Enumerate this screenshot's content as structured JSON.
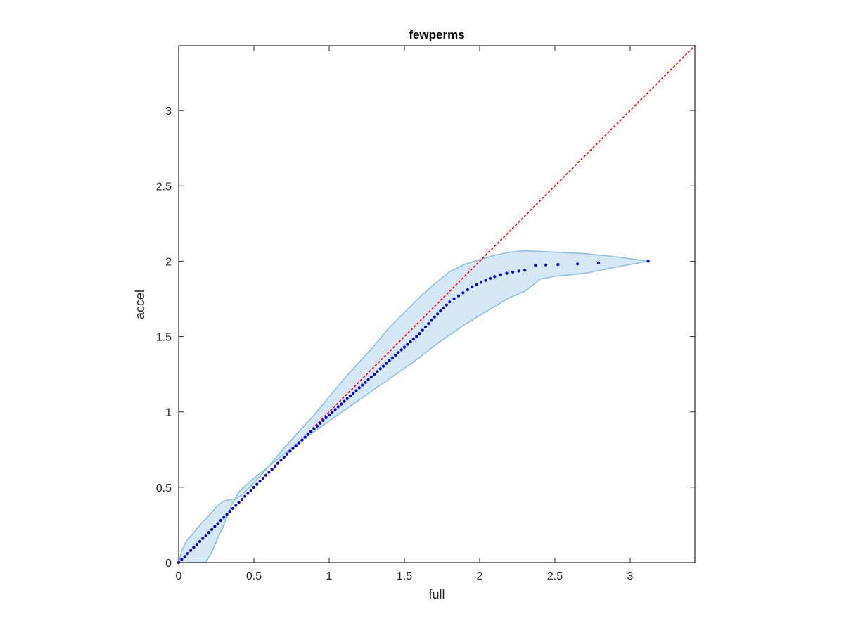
{
  "chart_data": {
    "type": "scatter",
    "title": "fewperms",
    "xlabel": "full",
    "ylabel": "accel",
    "xlim": [
      0,
      3.43
    ],
    "ylim": [
      0,
      3.43
    ],
    "xticks": [
      0,
      0.5,
      1,
      1.5,
      2,
      2.5,
      3
    ],
    "xtick_labels": [
      "0",
      "0.5",
      "1",
      "1.5",
      "2",
      "2.5",
      "3"
    ],
    "yticks": [
      0,
      0.5,
      1,
      1.5,
      2,
      2.5,
      3
    ],
    "ytick_labels": [
      "0",
      "0.5",
      "1",
      "1.5",
      "2",
      "2.5",
      "3"
    ],
    "grid": false,
    "colors": {
      "points": "#0000ee",
      "reference_line": "#ff0000",
      "band_fill": "#d6e8f5",
      "band_edge": "#8cc0e0",
      "axes": "#262626"
    },
    "reference_line": {
      "style": "dotted",
      "from": [
        0,
        0
      ],
      "to": [
        3.43,
        3.43
      ]
    },
    "band": {
      "upper": [
        [
          0,
          0
        ],
        [
          0.02,
          0.08
        ],
        [
          0.05,
          0.14
        ],
        [
          0.1,
          0.2
        ],
        [
          0.15,
          0.26
        ],
        [
          0.2,
          0.31
        ],
        [
          0.25,
          0.37
        ],
        [
          0.3,
          0.41
        ],
        [
          0.35,
          0.42
        ],
        [
          0.38,
          0.42
        ],
        [
          0.42,
          0.45
        ],
        [
          0.5,
          0.53
        ],
        [
          0.6,
          0.64
        ],
        [
          0.7,
          0.76
        ],
        [
          0.8,
          0.87
        ],
        [
          0.9,
          0.98
        ],
        [
          1.0,
          1.1
        ],
        [
          1.1,
          1.22
        ],
        [
          1.2,
          1.33
        ],
        [
          1.3,
          1.44
        ],
        [
          1.4,
          1.56
        ],
        [
          1.5,
          1.66
        ],
        [
          1.6,
          1.76
        ],
        [
          1.7,
          1.85
        ],
        [
          1.8,
          1.93
        ],
        [
          1.9,
          1.98
        ],
        [
          2.0,
          2.01
        ],
        [
          2.1,
          2.04
        ],
        [
          2.2,
          2.06
        ],
        [
          2.3,
          2.07
        ],
        [
          2.5,
          2.06
        ],
        [
          2.7,
          2.05
        ],
        [
          2.9,
          2.03
        ],
        [
          3.12,
          2.0
        ]
      ],
      "lower": [
        [
          3.12,
          2.0
        ],
        [
          2.9,
          1.96
        ],
        [
          2.7,
          1.92
        ],
        [
          2.5,
          1.9
        ],
        [
          2.4,
          1.88
        ],
        [
          2.35,
          1.84
        ],
        [
          2.3,
          1.8
        ],
        [
          2.2,
          1.76
        ],
        [
          2.1,
          1.7
        ],
        [
          2.0,
          1.64
        ],
        [
          1.9,
          1.58
        ],
        [
          1.8,
          1.51
        ],
        [
          1.7,
          1.44
        ],
        [
          1.6,
          1.36
        ],
        [
          1.5,
          1.29
        ],
        [
          1.4,
          1.22
        ],
        [
          1.3,
          1.15
        ],
        [
          1.2,
          1.08
        ],
        [
          1.1,
          1.01
        ],
        [
          1.0,
          0.94
        ],
        [
          0.9,
          0.87
        ],
        [
          0.8,
          0.8
        ],
        [
          0.7,
          0.72
        ],
        [
          0.6,
          0.64
        ],
        [
          0.5,
          0.56
        ],
        [
          0.4,
          0.47
        ],
        [
          0.35,
          0.38
        ],
        [
          0.3,
          0.25
        ],
        [
          0.25,
          0.14
        ],
        [
          0.22,
          0.07
        ],
        [
          0.18,
          0
        ]
      ]
    },
    "series": [
      {
        "x": [
          0.0,
          0.02,
          0.04,
          0.06,
          0.08,
          0.1,
          0.12,
          0.14,
          0.16,
          0.18,
          0.2,
          0.22,
          0.24,
          0.26,
          0.28,
          0.3,
          0.32,
          0.34,
          0.36,
          0.38,
          0.4,
          0.42,
          0.44,
          0.46,
          0.48,
          0.5,
          0.52,
          0.54,
          0.56,
          0.58,
          0.6,
          0.62,
          0.64,
          0.66,
          0.68,
          0.7,
          0.72,
          0.74,
          0.76,
          0.78,
          0.8,
          0.82,
          0.84,
          0.86,
          0.88,
          0.9,
          0.92,
          0.94,
          0.96,
          0.98,
          1.0,
          1.02,
          1.04,
          1.06,
          1.08,
          1.1,
          1.12,
          1.14,
          1.16,
          1.18,
          1.2,
          1.22,
          1.24,
          1.26,
          1.28,
          1.3,
          1.32,
          1.34,
          1.36,
          1.38,
          1.4,
          1.42,
          1.44,
          1.46,
          1.48,
          1.5,
          1.52,
          1.54,
          1.56,
          1.58,
          1.6,
          1.62,
          1.64,
          1.66,
          1.68,
          1.7,
          1.72,
          1.74,
          1.76,
          1.78,
          1.8,
          1.83,
          1.86,
          1.89,
          1.92,
          1.95,
          1.98,
          2.01,
          2.04,
          2.07,
          2.1,
          2.14,
          2.18,
          2.22,
          2.26,
          2.3,
          2.37,
          2.44,
          2.52,
          2.65,
          2.79,
          3.12
        ],
        "y": [
          0.0,
          0.02,
          0.04,
          0.06,
          0.08,
          0.1,
          0.12,
          0.14,
          0.16,
          0.18,
          0.2,
          0.22,
          0.24,
          0.26,
          0.28,
          0.3,
          0.32,
          0.34,
          0.36,
          0.38,
          0.4,
          0.42,
          0.44,
          0.46,
          0.48,
          0.5,
          0.52,
          0.54,
          0.56,
          0.58,
          0.6,
          0.62,
          0.64,
          0.66,
          0.68,
          0.7,
          0.72,
          0.74,
          0.758,
          0.777,
          0.795,
          0.814,
          0.832,
          0.851,
          0.869,
          0.888,
          0.906,
          0.925,
          0.943,
          0.962,
          0.98,
          0.998,
          1.016,
          1.034,
          1.052,
          1.07,
          1.088,
          1.106,
          1.124,
          1.142,
          1.16,
          1.178,
          1.196,
          1.214,
          1.232,
          1.25,
          1.268,
          1.286,
          1.304,
          1.322,
          1.34,
          1.358,
          1.376,
          1.394,
          1.412,
          1.43,
          1.448,
          1.466,
          1.484,
          1.502,
          1.52,
          1.542,
          1.564,
          1.586,
          1.608,
          1.63,
          1.65,
          1.67,
          1.69,
          1.71,
          1.73,
          1.75,
          1.77,
          1.79,
          1.81,
          1.83,
          1.845,
          1.86,
          1.873,
          1.886,
          1.898,
          1.91,
          1.92,
          1.928,
          1.935,
          1.94,
          1.972,
          1.975,
          1.978,
          1.982,
          1.988,
          2.0
        ]
      }
    ]
  }
}
